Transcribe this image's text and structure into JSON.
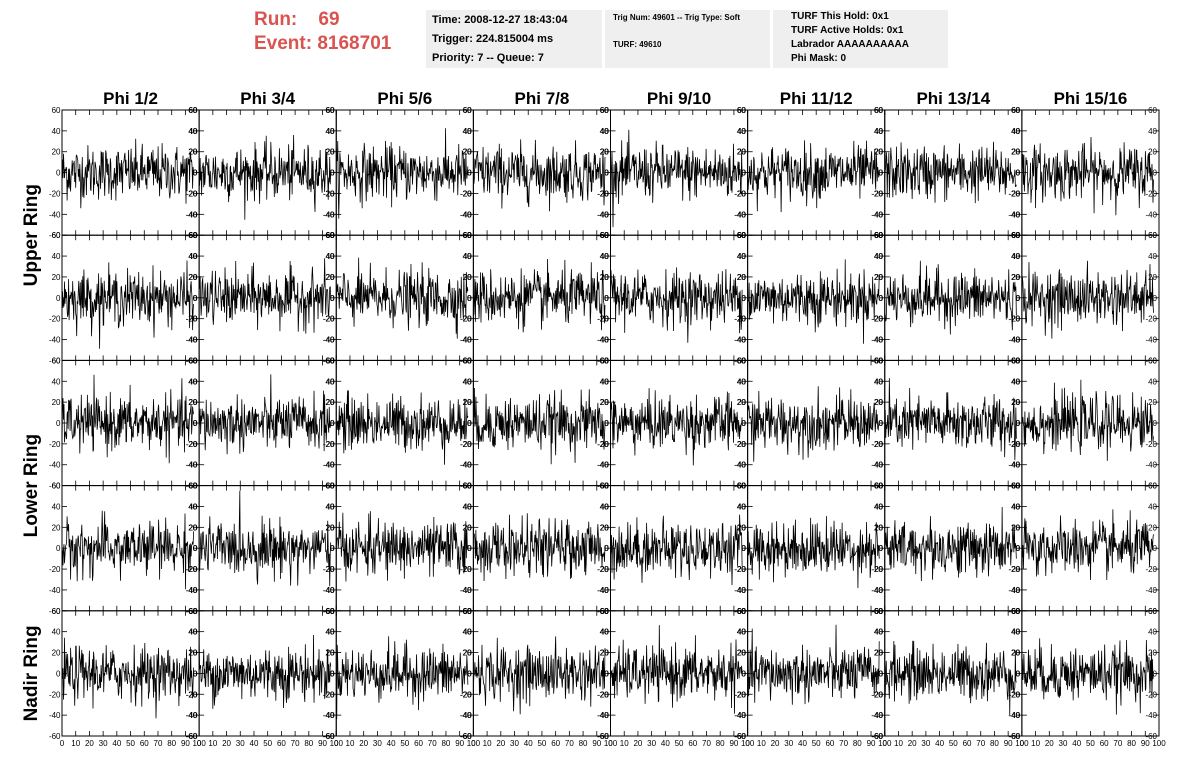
{
  "header": {
    "run_label": "Run:",
    "run_value": "69",
    "event_label": "Event:",
    "event_value": "8168701",
    "time": "Time: 2008-12-27 18:43:04",
    "trigger": "Trigger: 224.815004 ms",
    "priority": "Priority: 7 -- Queue: 7",
    "trig_num": "Trig Num: 49601 -- Trig Type: Soft",
    "turf": "TURF: 49610",
    "turf_hold": "TURF This Hold: 0x1",
    "turf_active": "TURF Active Holds: 0x1",
    "labrador": "Labrador AAAAAAAAAA",
    "phi_mask": "Phi Mask: 0"
  },
  "colors": {
    "header_red": "#d9534f",
    "info_box": "#efefef",
    "trace": "#000000"
  },
  "chart_data": {
    "type": "line",
    "phi_labels": [
      "Phi 1/2",
      "Phi 3/4",
      "Phi 5/6",
      "Phi 7/8",
      "Phi 9/10",
      "Phi 11/12",
      "Phi 13/14",
      "Phi 15/16"
    ],
    "ring_labels": [
      "Upper Ring",
      "Lower Ring",
      "Nadir Ring"
    ],
    "ring_rows": [
      [
        0,
        1
      ],
      [
        2,
        3
      ],
      [
        4
      ]
    ],
    "rows": 5,
    "cols": 8,
    "xlim": [
      0,
      100
    ],
    "ylim": [
      -60,
      60
    ],
    "x_ticks": [
      0,
      10,
      20,
      30,
      40,
      50,
      60,
      70,
      80,
      90,
      100
    ],
    "x_tick_labels": [
      "0",
      "10",
      "20",
      "30",
      "40",
      "50",
      "60",
      "70",
      "80",
      "90",
      "100"
    ],
    "y_ticks": [
      -60,
      -40,
      -20,
      0,
      20,
      40,
      60
    ],
    "y_tick_labels": [
      "-60",
      "-40",
      "-20",
      "0",
      "20",
      "40",
      "60"
    ],
    "samples_per_trace": 260,
    "trace_x_range": [
      0,
      96
    ],
    "trace_amplitude_std": 13
  }
}
